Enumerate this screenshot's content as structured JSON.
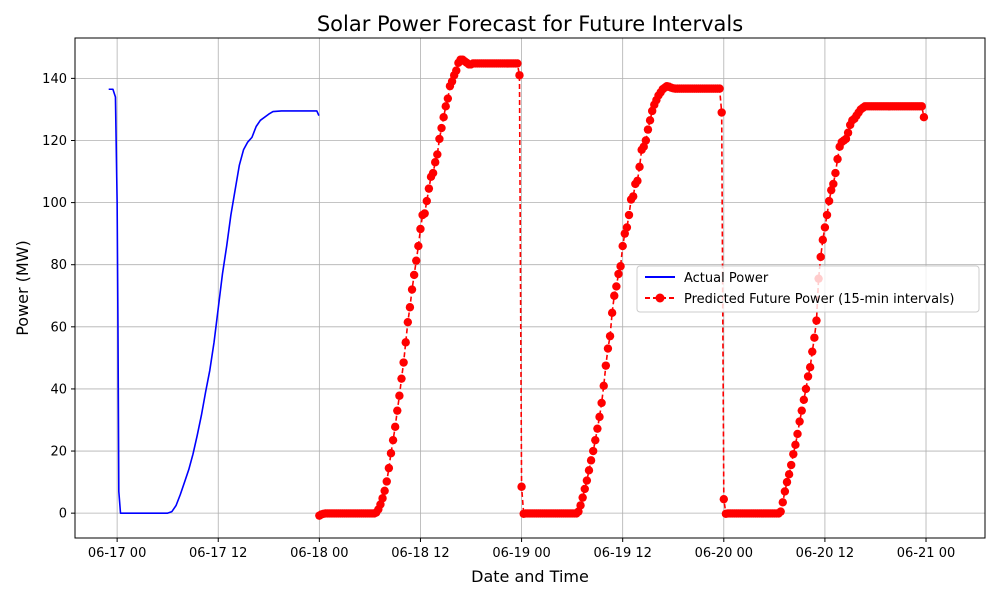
{
  "chart_data": {
    "type": "line",
    "title": "Solar Power Forecast for Future Intervals",
    "xlabel": "Date and Time",
    "ylabel": "Power (MW)",
    "x_range_hours": [
      -5,
      103
    ],
    "ylim": [
      -8,
      153
    ],
    "x_ticks": [
      {
        "hour": 0,
        "label": "06-17 00"
      },
      {
        "hour": 12,
        "label": "06-17 12"
      },
      {
        "hour": 24,
        "label": "06-18 00"
      },
      {
        "hour": 36,
        "label": "06-18 12"
      },
      {
        "hour": 48,
        "label": "06-19 00"
      },
      {
        "hour": 60,
        "label": "06-19 12"
      },
      {
        "hour": 72,
        "label": "06-20 00"
      },
      {
        "hour": 84,
        "label": "06-20 12"
      },
      {
        "hour": 96,
        "label": "06-21 00"
      }
    ],
    "y_ticks": [
      0,
      20,
      40,
      60,
      80,
      100,
      120,
      140
    ],
    "grid": true,
    "legend_position": "center-right",
    "series": [
      {
        "name": "Actual Power",
        "color": "#0000ff",
        "style": "solid",
        "marker": "none",
        "points": [
          [
            -1.0,
            136.5
          ],
          [
            -0.5,
            136.5
          ],
          [
            -0.2,
            134
          ],
          [
            0.0,
            100
          ],
          [
            0.1,
            60
          ],
          [
            0.2,
            7
          ],
          [
            0.4,
            0
          ],
          [
            1,
            0
          ],
          [
            3,
            0
          ],
          [
            5,
            0
          ],
          [
            6,
            0
          ],
          [
            6.5,
            0.5
          ],
          [
            7,
            2.5
          ],
          [
            7.5,
            6
          ],
          [
            8,
            10
          ],
          [
            8.5,
            14
          ],
          [
            9,
            19
          ],
          [
            9.5,
            25
          ],
          [
            10,
            31.5
          ],
          [
            10.5,
            39
          ],
          [
            11,
            46
          ],
          [
            11.5,
            55
          ],
          [
            12,
            66
          ],
          [
            12.5,
            77
          ],
          [
            13,
            86
          ],
          [
            13.5,
            96
          ],
          [
            14,
            104
          ],
          [
            14.5,
            112
          ],
          [
            15,
            117
          ],
          [
            15.5,
            119.5
          ],
          [
            16,
            121
          ],
          [
            16.5,
            124.5
          ],
          [
            17,
            126.5
          ],
          [
            18,
            128.5
          ],
          [
            18.5,
            129.3
          ],
          [
            19.5,
            129.5
          ],
          [
            21,
            129.5
          ],
          [
            22.5,
            129.5
          ],
          [
            23.7,
            129.5
          ],
          [
            23.95,
            128
          ]
        ]
      },
      {
        "name": "Predicted Future Power (15-min intervals)",
        "color": "#ff0000",
        "style": "dashed",
        "marker": "circle",
        "days": [
          {
            "start_hour": 24,
            "morning": [
              -0.8,
              -0.4,
              -0.2,
              -0.1,
              -0.1,
              -0.1,
              -0.1,
              -0.1,
              -0.1,
              -0.1,
              -0.1,
              -0.1,
              -0.1,
              -0.1,
              -0.1,
              -0.1,
              -0.1,
              -0.1,
              -0.1,
              -0.1,
              -0.1,
              -0.1,
              -0.1,
              -0.1,
              -0.1,
              -0.1,
              -0.1,
              0.2,
              1.2,
              2.8,
              4.8,
              7.2,
              10.2,
              14.5,
              19.3,
              23.5,
              27.8,
              33,
              37.8,
              43.3,
              48.5,
              55,
              61.5,
              66.3,
              72,
              76.7,
              81.3,
              86,
              91.5,
              96,
              96.5,
              100.5,
              104.5,
              108.3,
              109.5,
              113,
              115.5,
              120.5,
              124,
              127.5,
              131,
              133.5,
              137.5,
              139,
              141,
              142.5,
              145,
              146,
              146,
              145.5,
              145,
              144.5,
              144.5
            ],
            "plateau": 144.8,
            "end_value": 141
          },
          {
            "start_hour": 48,
            "morning": [
              8.5,
              -0.2,
              -0.1,
              -0.1,
              -0.1,
              -0.1,
              -0.1,
              -0.1,
              -0.1,
              -0.1,
              -0.1,
              -0.1,
              -0.1,
              -0.1,
              -0.1,
              -0.1,
              -0.1,
              -0.1,
              -0.1,
              -0.1,
              -0.1,
              -0.1,
              -0.1,
              -0.1,
              -0.1,
              -0.1,
              -0.1,
              0.5,
              2.5,
              5,
              7.8,
              10.5,
              13.8,
              17,
              20,
              23.5,
              27.2,
              31,
              35.5,
              41,
              47.5,
              53,
              57,
              64.5,
              70,
              73,
              77,
              79.5,
              86,
              90,
              92,
              96,
              101,
              102,
              106,
              107,
              111.5,
              117,
              118,
              120,
              123.5,
              126.5,
              129.5,
              131.5,
              133,
              134.5,
              135.5,
              136.5,
              137,
              137.5,
              137.3,
              137,
              136.8
            ],
            "plateau": 136.7,
            "end_value": 129
          },
          {
            "start_hour": 72,
            "morning": [
              4.5,
              -0.2,
              -0.1,
              -0.1,
              -0.1,
              -0.1,
              -0.1,
              -0.1,
              -0.1,
              -0.1,
              -0.1,
              -0.1,
              -0.1,
              -0.1,
              -0.1,
              -0.1,
              -0.1,
              -0.1,
              -0.1,
              -0.1,
              -0.1,
              -0.1,
              -0.1,
              -0.1,
              -0.1,
              -0.1,
              -0.1,
              0.5,
              3.5,
              7,
              10,
              12.5,
              15.5,
              19,
              22,
              25.5,
              29.5,
              33,
              36.5,
              40,
              44,
              47,
              52,
              56.5,
              62,
              75.5,
              82.5,
              88,
              92,
              96,
              100.5,
              104,
              106,
              109.5,
              114,
              118,
              119.5,
              120,
              120.5,
              122.5,
              125,
              126.5,
              127,
              128,
              129,
              130,
              130.5,
              131,
              131
            ],
            "plateau": 131,
            "end_value": 127.5
          }
        ]
      }
    ]
  }
}
